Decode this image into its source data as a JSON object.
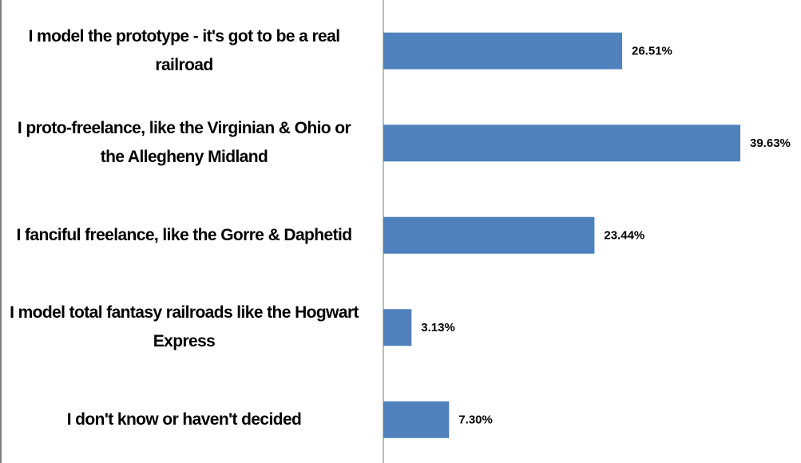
{
  "chart_data": {
    "type": "hbar",
    "categories": [
      "I model the prototype - it's got to be a real railroad",
      "I proto-freelance, like the Virginian & Ohio or the Allegheny Midland",
      "I fanciful freelance, like the Gorre & Daphetid",
      "I model total fantasy railroads like the Hogwart Express",
      "I don't know or haven't decided"
    ],
    "values": [
      26.51,
      39.63,
      23.44,
      3.13,
      7.3
    ],
    "value_labels": [
      "26.51%",
      "39.63%",
      "23.44%",
      "3.13%",
      "7.30%"
    ],
    "color": "#4f81bd"
  }
}
